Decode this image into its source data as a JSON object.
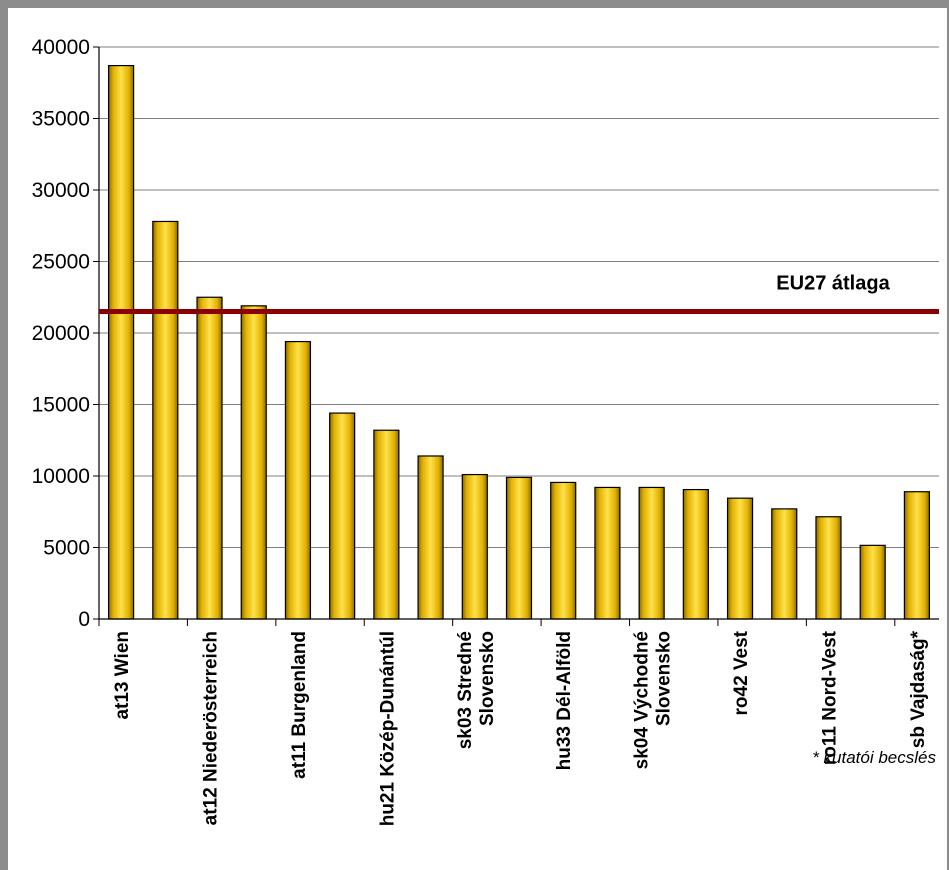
{
  "chart_data": {
    "type": "bar",
    "categories": [
      "at13 Wien",
      "",
      "at12 Niederösterreich",
      "",
      "at11 Burgenland",
      "",
      "hu21 Közép-Dunántúl",
      "",
      "sk03 Stredné\nSlovensko",
      "",
      "hu33 Dél-Alföld",
      "",
      "sk04 Východné\nSlovensko",
      "",
      "ro42 Vest",
      "",
      "ro11 Nord-Vest",
      "",
      "sb Vajdaság*"
    ],
    "values": [
      38700,
      27800,
      22500,
      21900,
      19400,
      14400,
      13200,
      11400,
      10100,
      9900,
      9550,
      9200,
      9200,
      9050,
      8450,
      7700,
      7150,
      5150,
      8900
    ],
    "ylim": [
      0,
      40000
    ],
    "yticks": [
      0,
      5000,
      10000,
      15000,
      20000,
      25000,
      30000,
      35000,
      40000
    ],
    "grid": true,
    "bar_color": "#f0c000",
    "reference_line": {
      "value": 21500,
      "label": "EU27 átlaga",
      "color": "#8b0000"
    },
    "footnote": "* kutatói becslés"
  }
}
